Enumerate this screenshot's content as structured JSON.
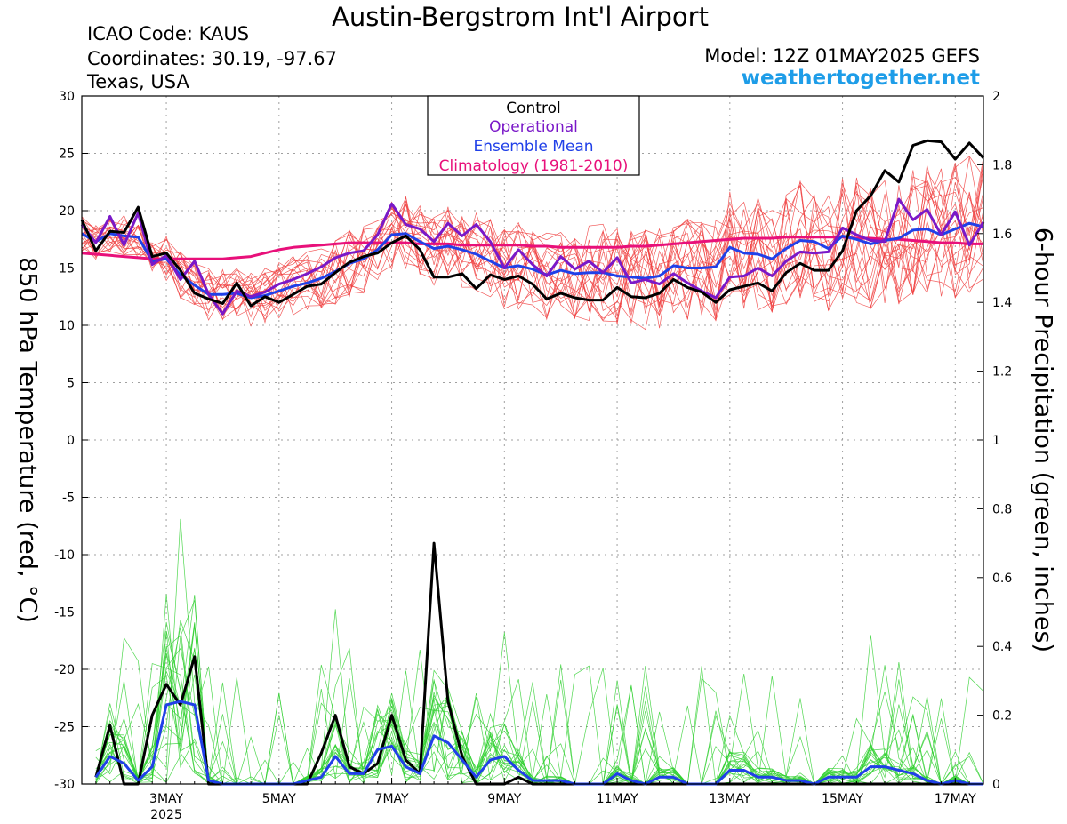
{
  "header": {
    "title": "Austin-Bergstrom Int'l Airport",
    "icao": "ICAO Code: KAUS",
    "coordinates": "Coordinates: 30.19, -97.67",
    "region": "Texas, USA",
    "model": "Model: 12Z 01MAY2025 GEFS",
    "site": "weathertogether.net"
  },
  "colors": {
    "control": "#000000",
    "operational": "#7a18c8",
    "ensemble_mean": "#2040e8",
    "climatology": "#e8107a",
    "members_temp": "#f04040",
    "members_precip": "#30d030",
    "site": "#1e9de8"
  },
  "chart_data": {
    "type": "line",
    "title": "Austin-Bergstrom Int'l Airport",
    "ylabel_left": "850 hPa Temperature (red, °C)",
    "ylabel_right": "6-hour Precipitation (green, inches)",
    "left_axis": {
      "ylim": [
        -30,
        30
      ],
      "ticks": [
        "30",
        "25",
        "20",
        "15",
        "10",
        "5",
        "0",
        "-5",
        "-10",
        "-15",
        "-20",
        "-25",
        "-30"
      ]
    },
    "right_axis": {
      "ylim": [
        0,
        2
      ],
      "ticks": [
        "2",
        "1.8",
        "1.6",
        "1.4",
        "1.2",
        "1",
        "0.8",
        "0.6",
        "0.4",
        "0.2",
        "0"
      ]
    },
    "x_axis": {
      "unit": "day of May 2025",
      "xlim": [
        1.5,
        17.5
      ],
      "ticks": [
        {
          "x": 3,
          "label": "3MAY",
          "sub": "2025"
        },
        {
          "x": 5,
          "label": "5MAY",
          "sub": ""
        },
        {
          "x": 7,
          "label": "7MAY",
          "sub": ""
        },
        {
          "x": 9,
          "label": "9MAY",
          "sub": ""
        },
        {
          "x": 11,
          "label": "11MAY",
          "sub": ""
        },
        {
          "x": 13,
          "label": "13MAY",
          "sub": ""
        },
        {
          "x": 15,
          "label": "15MAY",
          "sub": ""
        },
        {
          "x": 17,
          "label": "17MAY",
          "sub": ""
        }
      ]
    },
    "grid": true,
    "legend": {
      "placement": "top-center",
      "entries": [
        {
          "name": "Control",
          "color": "#000000"
        },
        {
          "name": "Operational",
          "color": "#7a18c8"
        },
        {
          "name": "Ensemble Mean",
          "color": "#2040e8"
        },
        {
          "name": "Climatology (1981-2010)",
          "color": "#e8107a"
        }
      ]
    },
    "temperature": {
      "x": [
        1.5,
        1.75,
        2.0,
        2.25,
        2.5,
        2.75,
        3.0,
        3.25,
        3.5,
        3.75,
        4.0,
        4.25,
        4.5,
        4.75,
        5.0,
        5.25,
        5.5,
        5.75,
        6.0,
        6.25,
        6.5,
        6.75,
        7.0,
        7.25,
        7.5,
        7.75,
        8.0,
        8.25,
        8.5,
        8.75,
        9.0,
        9.25,
        9.5,
        9.75,
        10.0,
        10.25,
        10.5,
        10.75,
        11.0,
        11.25,
        11.5,
        11.75,
        12.0,
        12.25,
        12.5,
        12.75,
        13.0,
        13.25,
        13.5,
        13.75,
        14.0,
        14.25,
        14.5,
        14.75,
        15.0,
        15.25,
        15.5,
        15.75,
        16.0,
        16.25,
        16.5,
        16.75,
        17.0,
        17.25,
        17.5
      ],
      "series": [
        {
          "name": "Control",
          "values": [
            19.2,
            16.5,
            18.2,
            18.1,
            20.3,
            16.0,
            16.3,
            14.8,
            12.8,
            12.3,
            11.9,
            13.7,
            11.7,
            12.5,
            12.0,
            12.7,
            13.4,
            13.6,
            14.6,
            15.5,
            16.0,
            16.3,
            17.2,
            17.8,
            16.6,
            14.2,
            14.2,
            14.5,
            13.2,
            14.4,
            14.0,
            14.3,
            13.6,
            12.3,
            12.8,
            12.4,
            12.2,
            12.2,
            13.3,
            12.5,
            12.4,
            12.8,
            14.0,
            13.3,
            12.9,
            12.0,
            13.1,
            13.4,
            13.7,
            13.0,
            14.6,
            15.4,
            14.8,
            14.8,
            16.5,
            20.0,
            21.3,
            23.5,
            22.5,
            25.7,
            26.1,
            26.0,
            24.5,
            25.9,
            24.6
          ]
        },
        {
          "name": "Operational",
          "values": [
            18.8,
            17.2,
            19.5,
            17.0,
            19.8,
            15.3,
            16.1,
            14.0,
            15.6,
            12.7,
            11.0,
            13.0,
            12.5,
            12.9,
            13.6,
            14.0,
            14.5,
            15.1,
            15.9,
            16.3,
            16.5,
            17.9,
            20.6,
            18.8,
            18.4,
            17.3,
            18.9,
            17.8,
            18.8,
            17.3,
            15.0,
            16.6,
            15.3,
            14.3,
            16.0,
            14.9,
            15.6,
            14.6,
            15.9,
            13.7,
            14.0,
            13.6,
            14.5,
            13.7,
            13.0,
            12.4,
            14.2,
            14.3,
            15.0,
            14.3,
            15.6,
            16.4,
            16.3,
            16.4,
            18.5,
            17.9,
            17.4,
            17.3,
            21.0,
            19.2,
            20.1,
            17.9,
            19.9,
            17.0,
            19.0
          ]
        },
        {
          "name": "Ensemble Mean",
          "values": [
            18.0,
            17.3,
            18.0,
            17.8,
            17.7,
            15.6,
            15.8,
            14.4,
            13.5,
            12.7,
            12.7,
            12.8,
            12.4,
            12.6,
            13.0,
            13.4,
            13.7,
            14.1,
            14.7,
            15.4,
            15.8,
            16.6,
            17.9,
            18.0,
            17.3,
            16.7,
            16.9,
            16.6,
            16.2,
            15.6,
            15.0,
            15.2,
            14.9,
            14.4,
            14.8,
            14.5,
            14.6,
            14.6,
            14.3,
            14.2,
            14.1,
            14.3,
            15.2,
            15.0,
            15.0,
            15.1,
            16.8,
            16.3,
            16.2,
            15.8,
            16.7,
            17.4,
            17.3,
            16.7,
            17.8,
            17.5,
            17.1,
            17.4,
            17.6,
            18.3,
            18.4,
            17.9,
            18.4,
            18.9,
            18.6
          ]
        },
        {
          "name": "Climatology (1981-2010)",
          "values": [
            16.3,
            16.2,
            16.1,
            16.0,
            15.9,
            15.8,
            15.8,
            15.8,
            15.8,
            15.8,
            15.8,
            15.9,
            16.0,
            16.3,
            16.6,
            16.8,
            16.9,
            17.0,
            17.1,
            17.2,
            17.2,
            17.2,
            17.2,
            17.2,
            17.1,
            17.1,
            17.1,
            17.0,
            17.0,
            17.0,
            17.0,
            17.0,
            16.9,
            16.9,
            16.8,
            16.8,
            16.8,
            16.8,
            16.8,
            16.9,
            16.9,
            17.0,
            17.1,
            17.2,
            17.3,
            17.4,
            17.5,
            17.6,
            17.6,
            17.6,
            17.7,
            17.7,
            17.7,
            17.7,
            17.7,
            17.6,
            17.6,
            17.5,
            17.5,
            17.4,
            17.3,
            17.2,
            17.2,
            17.1,
            17.1
          ]
        }
      ]
    },
    "precipitation": {
      "x": [
        1.75,
        2.0,
        2.25,
        2.5,
        2.75,
        3.0,
        3.25,
        3.5,
        3.75,
        4.0,
        4.25,
        4.5,
        4.75,
        5.0,
        5.25,
        5.5,
        5.75,
        6.0,
        6.25,
        6.5,
        6.75,
        7.0,
        7.25,
        7.5,
        7.75,
        8.0,
        8.25,
        8.5,
        8.75,
        9.0,
        9.25,
        9.5,
        9.75,
        10.0,
        10.25,
        10.5,
        10.75,
        11.0,
        11.25,
        11.5,
        11.75,
        12.0,
        12.25,
        12.5,
        12.75,
        13.0,
        13.25,
        13.5,
        13.75,
        14.0,
        14.25,
        14.5,
        14.75,
        15.0,
        15.25,
        15.5,
        15.75,
        16.0,
        16.25,
        16.5,
        16.75,
        17.0,
        17.25,
        17.5
      ],
      "series": [
        {
          "name": "Control",
          "values": [
            0.02,
            0.17,
            0.0,
            0.0,
            0.2,
            0.29,
            0.23,
            0.37,
            0.0,
            0.0,
            0.0,
            0.0,
            0.0,
            0.0,
            0.0,
            0.0,
            0.09,
            0.2,
            0.05,
            0.03,
            0.06,
            0.2,
            0.07,
            0.03,
            0.7,
            0.24,
            0.08,
            0.0,
            0.0,
            0.0,
            0.02,
            0.0,
            0.0,
            0.0,
            0.0,
            0.0,
            0.0,
            0.0,
            0.0,
            0.0,
            0.0,
            0.0,
            0.0,
            0.0,
            0.0,
            0.0,
            0.0,
            0.0,
            0.0,
            0.0,
            0.0,
            0.0,
            0.0,
            0.0,
            0.0,
            0.0,
            0.0,
            0.0,
            0.0,
            0.0,
            0.0,
            0.0,
            0.0,
            0.0
          ]
        },
        {
          "name": "Ensemble Mean",
          "values": [
            0.02,
            0.08,
            0.06,
            0.01,
            0.05,
            0.23,
            0.24,
            0.23,
            0.01,
            0.0,
            0.0,
            0.0,
            0.0,
            0.0,
            0.0,
            0.01,
            0.02,
            0.08,
            0.03,
            0.03,
            0.1,
            0.11,
            0.05,
            0.03,
            0.14,
            0.12,
            0.07,
            0.02,
            0.07,
            0.08,
            0.04,
            0.01,
            0.01,
            0.01,
            0.0,
            0.0,
            0.0,
            0.03,
            0.01,
            0.0,
            0.02,
            0.02,
            0.0,
            0.0,
            0.0,
            0.04,
            0.04,
            0.02,
            0.02,
            0.01,
            0.01,
            0.0,
            0.02,
            0.02,
            0.02,
            0.05,
            0.05,
            0.04,
            0.03,
            0.01,
            0.0,
            0.01,
            0.0,
            0.0
          ]
        }
      ]
    }
  }
}
